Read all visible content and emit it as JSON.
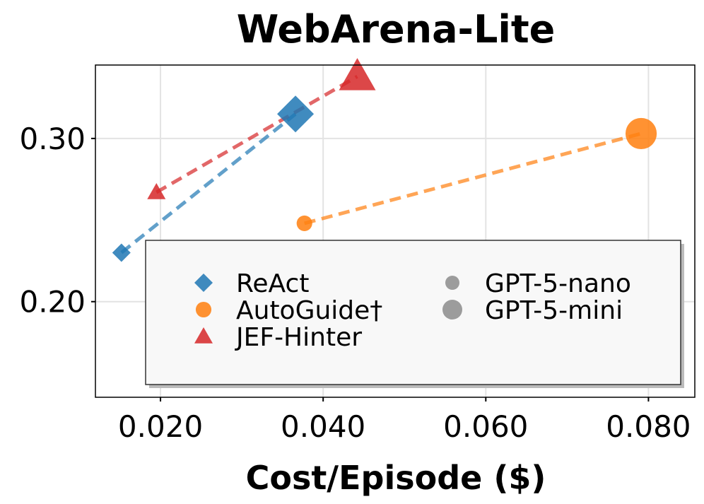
{
  "chart_data": {
    "type": "scatter",
    "title": "WebArena-Lite",
    "xlabel": "Cost/Episode ($)",
    "ylabel": "",
    "xlim": [
      0.012,
      0.0857
    ],
    "ylim": [
      0.1414,
      0.345
    ],
    "xticks": [
      0.02,
      0.04,
      0.06,
      0.08
    ],
    "xtick_labels": [
      "0.020",
      "0.040",
      "0.060",
      "0.080"
    ],
    "yticks": [
      0.2,
      0.3
    ],
    "ytick_labels": [
      "0.20",
      "0.30"
    ],
    "grid": true,
    "legend_position": "bottom-right",
    "series": [
      {
        "name": "ReAct",
        "marker": "diamond",
        "color": "#1f77b4",
        "points": [
          {
            "x": 0.0152,
            "y": 0.23,
            "model": "GPT-5-nano"
          },
          {
            "x": 0.0366,
            "y": 0.315,
            "model": "GPT-5-mini"
          }
        ]
      },
      {
        "name": "AutoGuide†",
        "marker": "circle",
        "color": "#ff7f0e",
        "points": [
          {
            "x": 0.0377,
            "y": 0.248,
            "model": "GPT-5-nano"
          },
          {
            "x": 0.0791,
            "y": 0.303,
            "model": "GPT-5-mini"
          }
        ]
      },
      {
        "name": "JEF-Hinter",
        "marker": "triangle",
        "color": "#d62728",
        "points": [
          {
            "x": 0.0195,
            "y": 0.267,
            "model": "GPT-5-nano"
          },
          {
            "x": 0.0442,
            "y": 0.338,
            "model": "GPT-5-mini"
          }
        ]
      }
    ],
    "size_legend": [
      {
        "name": "GPT-5-nano",
        "size": "small"
      },
      {
        "name": "GPT-5-mini",
        "size": "large"
      }
    ]
  }
}
